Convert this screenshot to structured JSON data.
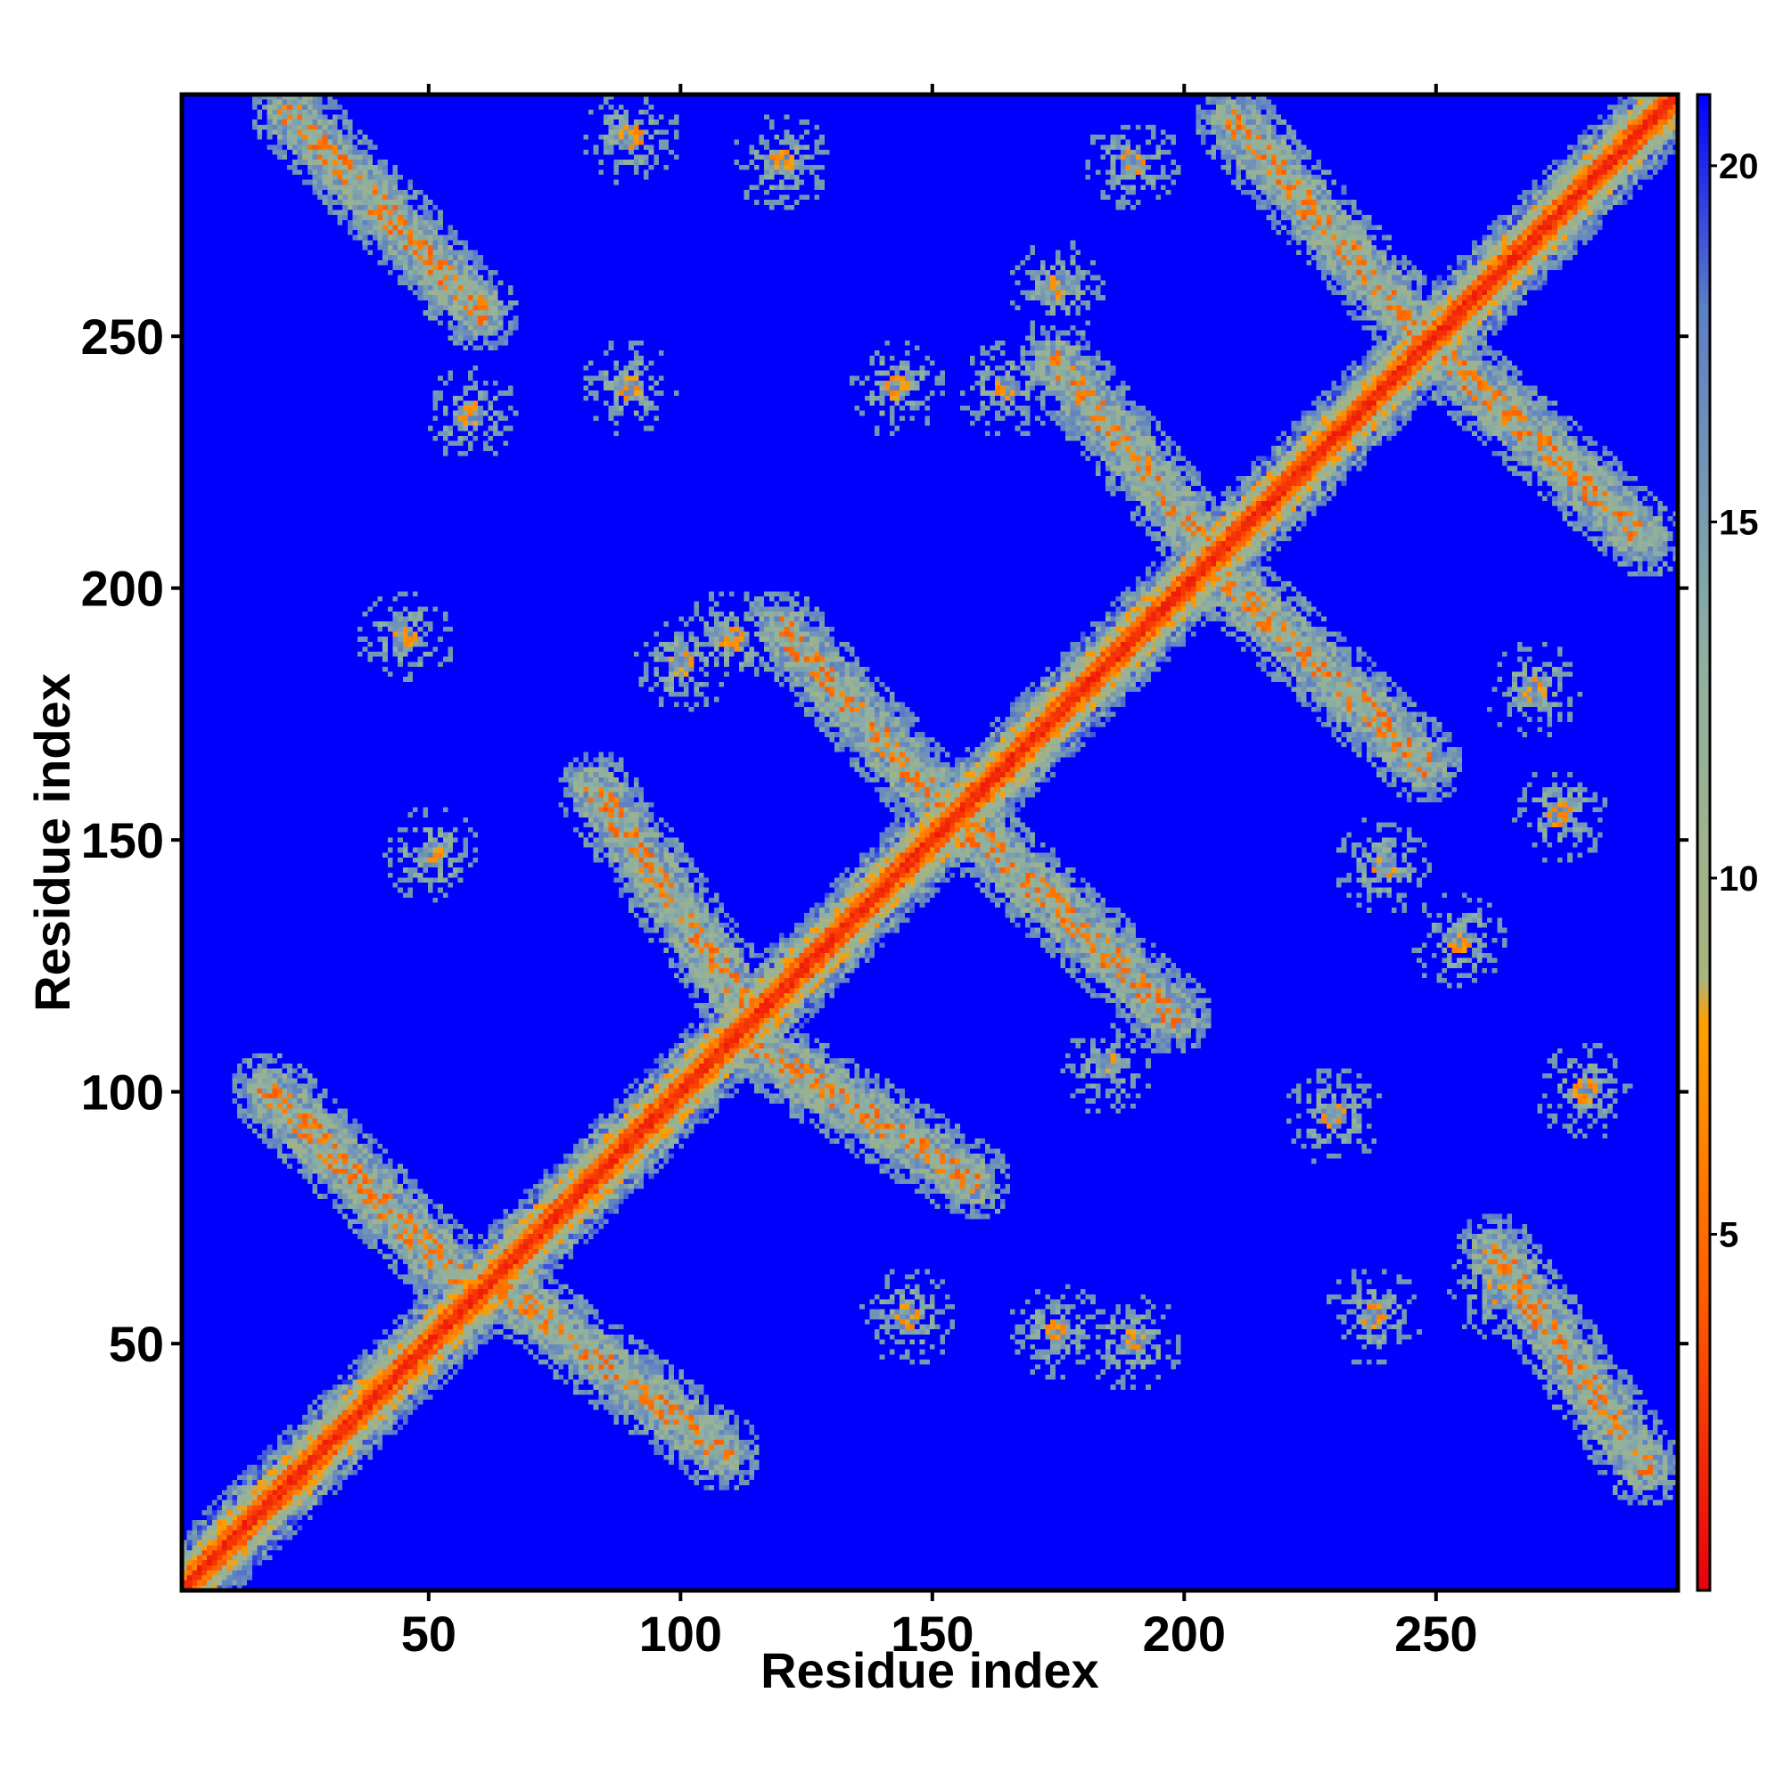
{
  "chart_data": {
    "type": "heatmap",
    "title": "",
    "xlabel": "Residue index",
    "ylabel": "Residue index",
    "xlim": [
      1,
      298
    ],
    "ylim": [
      1,
      298
    ],
    "x_ticks": [
      50,
      100,
      150,
      200,
      250
    ],
    "y_ticks": [
      50,
      100,
      150,
      200,
      250
    ],
    "colorbar": {
      "range": [
        0,
        21
      ],
      "ticks": [
        5,
        10,
        15,
        20
      ],
      "color_stops": [
        {
          "value": 0.0,
          "color": "#e8000e"
        },
        {
          "value": 4.0,
          "color": "#ff5a00"
        },
        {
          "value": 8.0,
          "color": "#ffa000"
        },
        {
          "value": 8.6,
          "color": "#a9b47e"
        },
        {
          "value": 13.0,
          "color": "#8fb0a0"
        },
        {
          "value": 18.0,
          "color": "#5c7fc6"
        },
        {
          "value": 21.0,
          "color": "#0000ff"
        }
      ],
      "saturated_color": "#0000ff"
    },
    "description_of_features": {
      "diagonal": "minimum distances along i=j band",
      "contact_bands": [
        {
          "from": [
            18,
            100
          ],
          "to": [
            55,
            63
          ],
          "kind": "antiparallel"
        },
        {
          "from": [
            63,
            62
          ],
          "to": [
            108,
            28
          ],
          "kind": "antiparallel"
        },
        {
          "from": [
            83,
            160
          ],
          "to": [
            112,
            118
          ],
          "kind": "antiparallel"
        },
        {
          "from": [
            113,
            110
          ],
          "to": [
            158,
            82
          ],
          "kind": "antiparallel"
        },
        {
          "from": [
            120,
            192
          ],
          "to": [
            158,
            150
          ],
          "kind": "antiparallel"
        },
        {
          "from": [
            158,
            152
          ],
          "to": [
            198,
            115
          ],
          "kind": "antiparallel"
        },
        {
          "from": [
            175,
            245
          ],
          "to": [
            205,
            208
          ],
          "kind": "antiparallel"
        },
        {
          "from": [
            205,
            205
          ],
          "to": [
            248,
            165
          ],
          "kind": "antiparallel"
        },
        {
          "from": [
            210,
            293
          ],
          "to": [
            248,
            250
          ],
          "kind": "antiparallel"
        },
        {
          "from": [
            250,
            248
          ],
          "to": [
            292,
            210
          ],
          "kind": "antiparallel"
        },
        {
          "from": [
            22,
            295
          ],
          "to": [
            60,
            255
          ],
          "kind": "antiparallel"
        },
        {
          "from": [
            262,
            68
          ],
          "to": [
            292,
            25
          ],
          "kind": "antiparallel"
        }
      ],
      "contact_clusters": [
        [
          58,
          235
        ],
        [
          90,
          290
        ],
        [
          90,
          240
        ],
        [
          120,
          285
        ],
        [
          143,
          240
        ],
        [
          165,
          240
        ],
        [
          175,
          260
        ],
        [
          190,
          285
        ],
        [
          50,
          147
        ],
        [
          45,
          190
        ],
        [
          100,
          185
        ],
        [
          110,
          190
        ],
        [
          185,
          105
        ],
        [
          240,
          145
        ],
        [
          255,
          130
        ],
        [
          270,
          180
        ],
        [
          280,
          100
        ],
        [
          275,
          155
        ],
        [
          145,
          55
        ],
        [
          175,
          52
        ],
        [
          190,
          50
        ],
        [
          238,
          55
        ],
        [
          262,
          60
        ],
        [
          230,
          95
        ]
      ]
    }
  }
}
